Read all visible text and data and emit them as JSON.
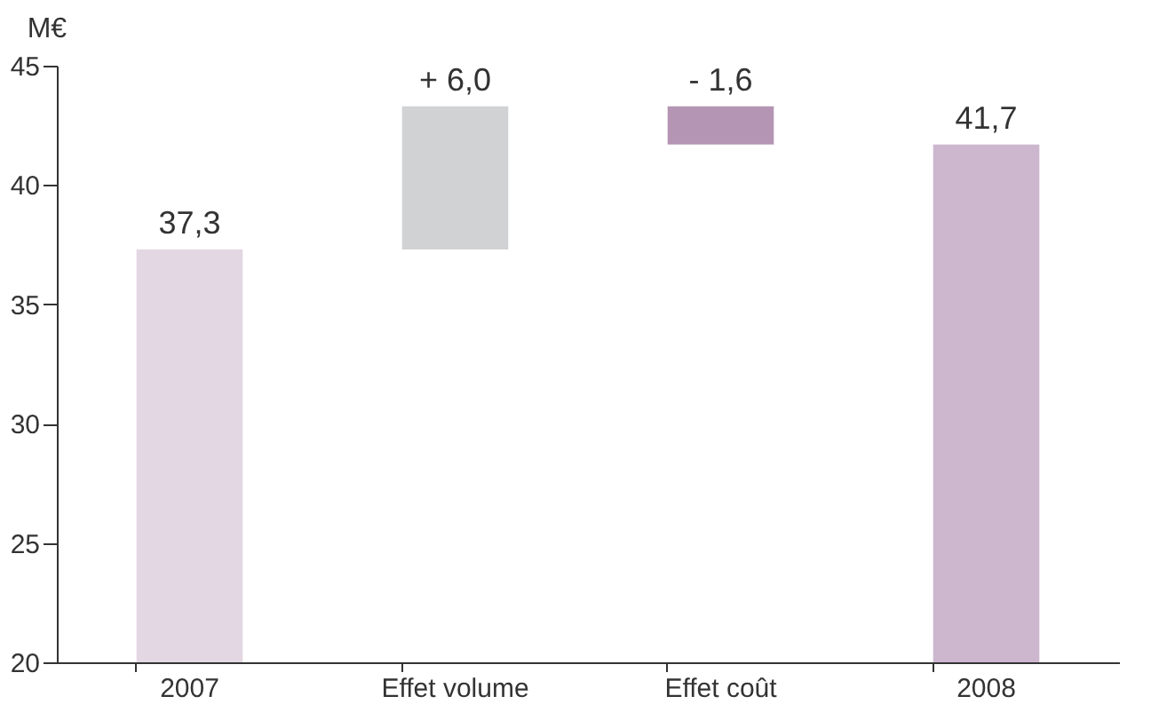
{
  "chart_data": {
    "type": "bar",
    "ylabel": "M€",
    "categories": [
      "2007",
      "Effet volume",
      "Effet coût",
      "2008"
    ],
    "values": [
      37.3,
      6.0,
      -1.6,
      41.7
    ],
    "base": [
      null,
      37.3,
      43.3,
      null
    ],
    "colors": [
      "#e3d7e3",
      "#d1d2d4",
      "#b496b4",
      "#cdb7cf"
    ],
    "value_labels": [
      "37,3",
      "+ 6,0",
      "- 1,6",
      "41,7"
    ],
    "ylim": [
      20,
      45
    ],
    "yticks": [
      20,
      25,
      30,
      35,
      40,
      45
    ],
    "grid": false
  }
}
